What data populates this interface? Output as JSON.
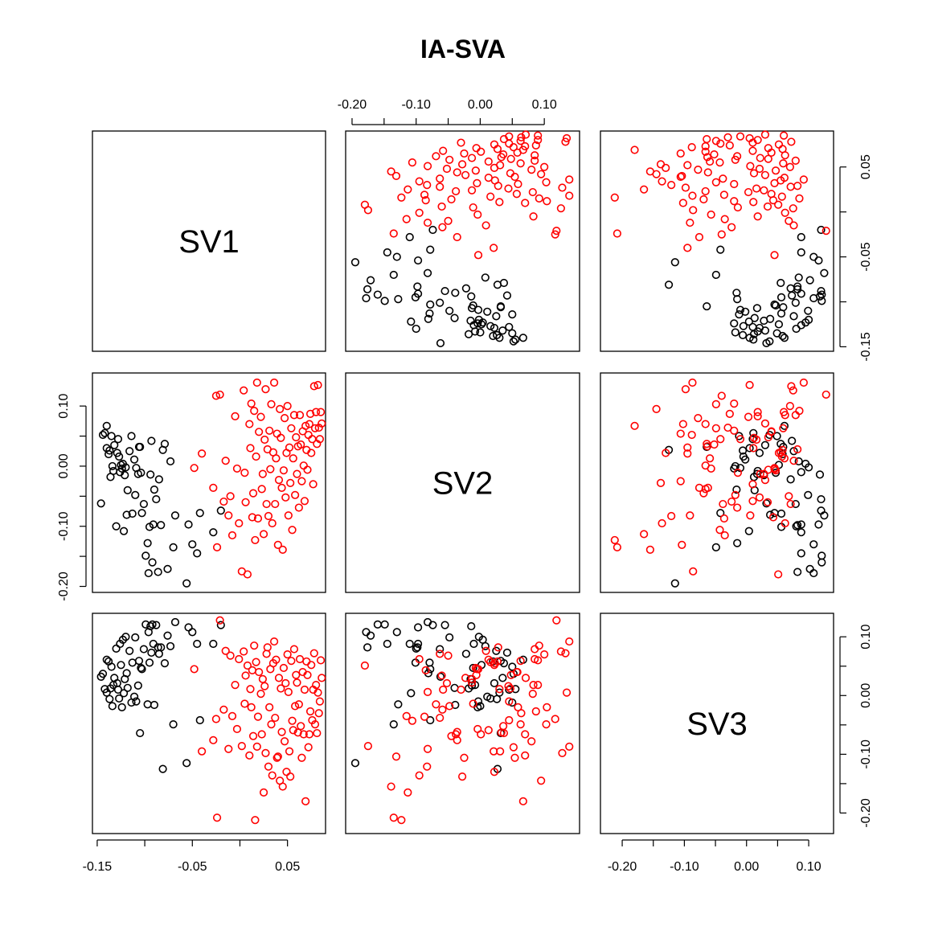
{
  "title": "IA-SVA",
  "colors": {
    "group1": "#000000",
    "group2": "#ff0000"
  },
  "chart_data": {
    "type": "scatter",
    "layout": "pairs-matrix",
    "title": "IA-SVA",
    "variables": [
      "SV1",
      "SV2",
      "SV3"
    ],
    "ranges": {
      "SV1": [
        -0.155,
        0.09
      ],
      "SV2": [
        -0.21,
        0.155
      ],
      "SV3": [
        -0.235,
        0.14
      ]
    },
    "tick_labels": {
      "SV1": [
        "-0.15",
        "-0.05",
        "0.05"
      ],
      "SV1_right": [
        "0.05",
        "-0.05",
        "-0.15"
      ],
      "SV2": [
        "-0.20",
        "-0.10",
        "0.00",
        "0.10"
      ],
      "SV3": [
        "-0.20",
        "-0.10",
        "0.00",
        "0.10"
      ]
    },
    "tick_values": {
      "SV1": [
        -0.15,
        -0.1,
        -0.05,
        0.0,
        0.05
      ],
      "SV1_labeled": [
        -0.15,
        -0.05,
        0.05
      ],
      "SV2": [
        -0.2,
        -0.15,
        -0.1,
        -0.05,
        0.0,
        0.05,
        0.1
      ],
      "SV2_labeled": [
        -0.2,
        -0.1,
        0.0,
        0.1
      ],
      "SV3": [
        -0.2,
        -0.15,
        -0.1,
        -0.05,
        0.0,
        0.05,
        0.1
      ],
      "SV3_labeled": [
        -0.2,
        -0.1,
        0.0,
        0.1
      ]
    },
    "series": [
      {
        "color": "#000000",
        "points": [
          [
            -0.146,
            -0.062,
            0.032
          ],
          [
            -0.144,
            0.052,
            0.037
          ],
          [
            -0.142,
            0.055,
            0.011
          ],
          [
            -0.14,
            0.067,
            0.061
          ],
          [
            -0.14,
            0.03,
            0.005
          ],
          [
            -0.138,
            0.02,
            0.058
          ],
          [
            -0.137,
            0.026,
            -0.006
          ],
          [
            -0.136,
            -0.018,
            0.012
          ],
          [
            -0.135,
            0.05,
            0.049
          ],
          [
            -0.134,
            0.0,
            -0.018
          ],
          [
            -0.133,
            -0.008,
            0.018
          ],
          [
            -0.132,
            0.035,
            0.03
          ],
          [
            -0.13,
            -0.1,
            0.08
          ],
          [
            -0.129,
            0.022,
            0.021
          ],
          [
            -0.128,
            0.045,
            0.01
          ],
          [
            -0.127,
            0.016,
            -0.005
          ],
          [
            -0.126,
            -0.01,
            0.088
          ],
          [
            -0.125,
            0.002,
            0.052
          ],
          [
            -0.124,
            -0.004,
            -0.02
          ],
          [
            -0.123,
            0.004,
            0.095
          ],
          [
            -0.122,
            -0.108,
            0.004
          ],
          [
            -0.121,
            -0.015,
            0.028
          ],
          [
            -0.12,
            -0.002,
            0.1
          ],
          [
            -0.119,
            -0.081,
            0.038
          ],
          [
            -0.118,
            -0.04,
            0.013
          ],
          [
            -0.116,
            0.025,
            0.076
          ],
          [
            -0.114,
            0.05,
            -0.012
          ],
          [
            -0.113,
            -0.079,
            0.056
          ],
          [
            -0.111,
            0.011,
            -0.002
          ],
          [
            -0.11,
            -0.048,
            0.099
          ],
          [
            -0.109,
            -0.003,
            -0.01
          ],
          [
            -0.107,
            -0.013,
            0.017
          ],
          [
            -0.106,
            0.032,
            0.059
          ],
          [
            -0.105,
            0.032,
            -0.064
          ],
          [
            -0.104,
            -0.011,
            0.047
          ],
          [
            -0.103,
            -0.078,
            0.045
          ],
          [
            -0.101,
            -0.063,
            0.079
          ],
          [
            -0.099,
            -0.149,
            0.121
          ],
          [
            -0.097,
            -0.128,
            -0.015
          ],
          [
            -0.096,
            -0.178,
            0.108
          ],
          [
            -0.095,
            -0.101,
            0.056
          ],
          [
            -0.094,
            -0.014,
            0.118
          ],
          [
            -0.093,
            0.042,
            0.073
          ],
          [
            -0.092,
            -0.16,
            0.121
          ],
          [
            -0.091,
            -0.097,
            0.088
          ],
          [
            -0.09,
            -0.039,
            -0.016
          ],
          [
            -0.088,
            -0.055,
            0.12
          ],
          [
            -0.086,
            -0.176,
            0.082
          ],
          [
            -0.085,
            -0.022,
            0.071
          ],
          [
            -0.083,
            -0.098,
            0.082
          ],
          [
            -0.081,
            0.027,
            -0.125
          ],
          [
            -0.079,
            0.037,
            0.055
          ],
          [
            -0.076,
            -0.171,
            0.102
          ],
          [
            -0.073,
            0.008,
            0.084
          ],
          [
            -0.07,
            -0.135,
            -0.049
          ],
          [
            -0.068,
            -0.082,
            0.125
          ],
          [
            -0.056,
            -0.195,
            -0.115
          ],
          [
            -0.054,
            -0.097,
            0.116
          ],
          [
            -0.05,
            -0.13,
            0.108
          ],
          [
            -0.045,
            -0.145,
            0.088
          ],
          [
            -0.042,
            -0.078,
            -0.042
          ],
          [
            -0.028,
            -0.11,
            0.088
          ],
          [
            -0.02,
            -0.074,
            0.12
          ]
        ]
      },
      {
        "color": "#ff0000",
        "points": [
          [
            -0.048,
            -0.003,
            0.045
          ],
          [
            -0.04,
            0.021,
            -0.095
          ],
          [
            -0.028,
            -0.036,
            -0.076
          ],
          [
            -0.025,
            0.117,
            -0.04
          ],
          [
            -0.024,
            -0.135,
            -0.208
          ],
          [
            -0.021,
            0.119,
            0.128
          ],
          [
            -0.017,
            -0.059,
            -0.024
          ],
          [
            -0.015,
            0.009,
            0.076
          ],
          [
            -0.012,
            -0.082,
            -0.091
          ],
          [
            -0.01,
            -0.05,
            0.068
          ],
          [
            -0.008,
            -0.115,
            -0.035
          ],
          [
            -0.005,
            0.083,
            0.018
          ],
          [
            -0.003,
            -0.004,
            -0.057
          ],
          [
            -0.001,
            -0.095,
            0.062
          ],
          [
            0.002,
            -0.175,
            -0.086
          ],
          [
            0.004,
            0.126,
            0.075
          ],
          [
            0.005,
            -0.011,
            -0.014
          ],
          [
            0.006,
            -0.06,
            0.034
          ],
          [
            0.008,
            -0.18,
            0.051
          ],
          [
            0.01,
            0.07,
            -0.102
          ],
          [
            0.011,
            0.03,
            0.011
          ],
          [
            0.012,
            0.104,
            -0.02
          ],
          [
            0.013,
            -0.085,
            0.043
          ],
          [
            0.014,
            -0.045,
            -0.069
          ],
          [
            0.015,
            0.092,
            0.085
          ],
          [
            0.016,
            -0.123,
            -0.212
          ],
          [
            0.017,
            0.016,
            0.057
          ],
          [
            0.018,
            0.139,
            -0.087
          ],
          [
            0.019,
            -0.087,
            -0.036
          ],
          [
            0.02,
            0.057,
            0.04
          ],
          [
            0.022,
            0.082,
            0.003
          ],
          [
            0.023,
            -0.038,
            -0.066
          ],
          [
            0.024,
            -0.013,
            0.028
          ],
          [
            0.025,
            -0.113,
            -0.165
          ],
          [
            0.026,
            0.044,
            0.016
          ],
          [
            0.027,
            0.128,
            -0.098
          ],
          [
            0.028,
            -0.063,
            0.071
          ],
          [
            0.029,
            0.028,
            0.082
          ],
          [
            0.03,
            -0.083,
            -0.121
          ],
          [
            0.031,
            0.059,
            -0.02
          ],
          [
            0.032,
            -0.005,
            0.045
          ],
          [
            0.033,
            0.103,
            -0.049
          ],
          [
            0.034,
            -0.095,
            -0.136
          ],
          [
            0.035,
            0.023,
            0.055
          ],
          [
            0.036,
            0.139,
            0.092
          ],
          [
            0.037,
            -0.063,
            -0.038
          ],
          [
            0.038,
            0.013,
            0.061
          ],
          [
            0.039,
            0.054,
            -0.106
          ],
          [
            0.04,
            -0.131,
            -0.104
          ],
          [
            0.041,
            -0.023,
            0.03
          ],
          [
            0.042,
            0.095,
            -0.145
          ],
          [
            0.043,
            0.047,
            0.012
          ],
          [
            0.044,
            -0.036,
            -0.062
          ],
          [
            0.045,
            -0.139,
            -0.155
          ],
          [
            0.046,
            -0.007,
            0.047
          ],
          [
            0.047,
            0.08,
            -0.078
          ],
          [
            0.048,
            -0.052,
            0.021
          ],
          [
            0.049,
            0.022,
            -0.13
          ],
          [
            0.05,
            0.1,
            0.07
          ],
          [
            0.051,
            -0.082,
            0.006
          ],
          [
            0.052,
            0.031,
            -0.095
          ],
          [
            0.053,
            -0.028,
            -0.138
          ],
          [
            0.054,
            0.063,
            0.059
          ],
          [
            0.055,
            -0.106,
            -0.043
          ],
          [
            0.056,
            0.013,
            -0.059
          ],
          [
            0.057,
            0.085,
            0.079
          ],
          [
            0.058,
            -0.048,
            -0.018
          ],
          [
            0.059,
            0.048,
            0.035
          ],
          [
            0.06,
            -0.013,
            0.022
          ],
          [
            0.061,
            0.033,
            -0.063
          ],
          [
            0.062,
            -0.069,
            -0.015
          ],
          [
            0.063,
            0.085,
            0.062
          ],
          [
            0.064,
            0.036,
            -0.052
          ],
          [
            0.065,
            -0.025,
            -0.106
          ],
          [
            0.066,
            0.058,
            0.04
          ],
          [
            0.067,
            0.001,
            -0.066
          ],
          [
            0.068,
            -0.058,
            0.01
          ],
          [
            0.069,
            0.067,
            -0.18
          ],
          [
            0.07,
            0.027,
            0.058
          ],
          [
            0.071,
            -0.006,
            0.035
          ],
          [
            0.072,
            0.052,
            -0.088
          ],
          [
            0.073,
            0.07,
            -0.066
          ],
          [
            0.074,
            0.087,
            -0.027
          ],
          [
            0.075,
            0.022,
            0.052
          ],
          [
            0.076,
            0.045,
            -0.042
          ],
          [
            0.077,
            -0.03,
            0.01
          ],
          [
            0.078,
            0.133,
            0.072
          ],
          [
            0.079,
            0.063,
            -0.049
          ],
          [
            0.08,
            0.09,
            0.018
          ],
          [
            0.081,
            0.037,
            -0.064
          ],
          [
            0.082,
            0.135,
            0.005
          ],
          [
            0.083,
            0.064,
            -0.03
          ],
          [
            0.084,
            0.045,
            -0.01
          ],
          [
            0.085,
            0.09,
            0.06
          ],
          [
            0.086,
            0.071,
            0.03
          ]
        ]
      }
    ]
  }
}
